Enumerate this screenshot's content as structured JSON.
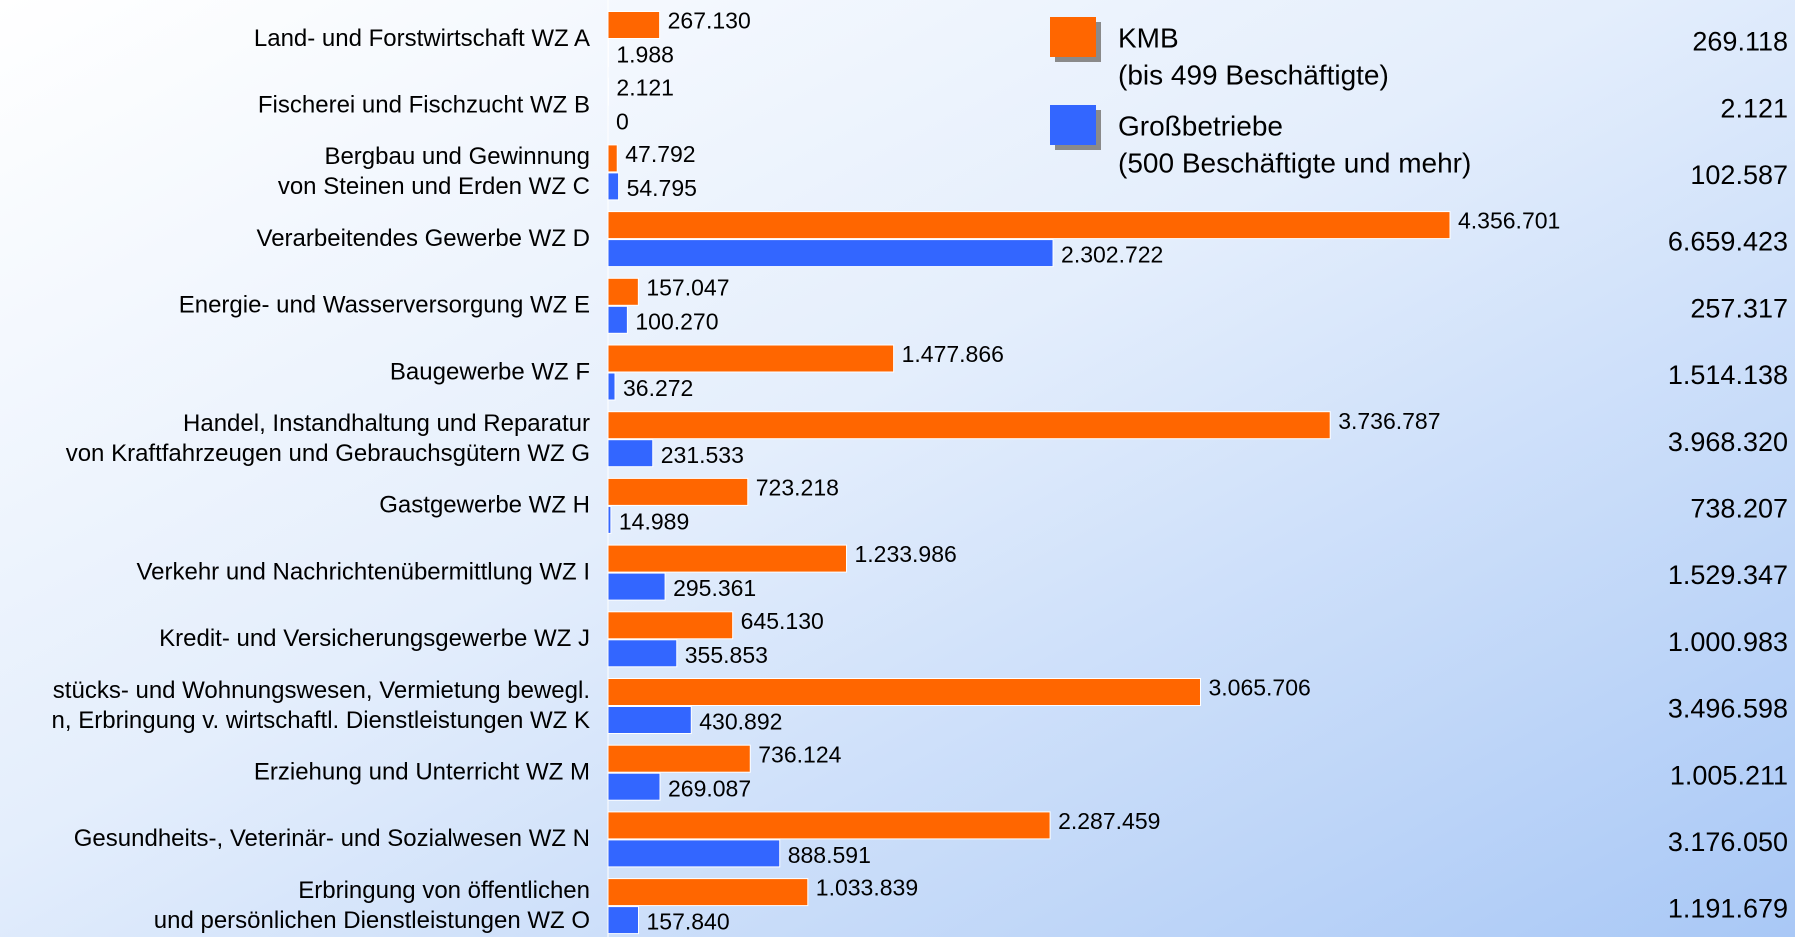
{
  "chart_data": {
    "type": "bar",
    "categories": [
      [
        "Land- und Forstwirtschaft WZ A"
      ],
      [
        "Fischerei und Fischzucht WZ B"
      ],
      [
        "Bergbau und Gewinnung",
        "von Steinen und Erden WZ C"
      ],
      [
        "Verarbeitendes Gewerbe WZ D"
      ],
      [
        "Energie- und Wasserversorgung WZ E"
      ],
      [
        "Baugewerbe WZ F"
      ],
      [
        "Handel, Instandhaltung und Reparatur",
        "von Kraftfahrzeugen und Gebrauchsgütern WZ G"
      ],
      [
        "Gastgewerbe WZ H"
      ],
      [
        "Verkehr und Nachrichtenübermittlung WZ I"
      ],
      [
        "Kredit- und Versicherungsgewerbe WZ J"
      ],
      [
        "stücks- und Wohnungswesen, Vermietung bewegl.",
        "n, Erbringung v. wirtschaftl. Dienstleistungen WZ K"
      ],
      [
        "Erziehung und Unterricht WZ M"
      ],
      [
        "Gesundheits-, Veterinär- und Sozialwesen WZ N"
      ],
      [
        "Erbringung von öffentlichen",
        "und persönlichen Dienstleistungen WZ O"
      ]
    ],
    "series": [
      {
        "name": "KMB",
        "description": "(bis 499 Beschäftigte)",
        "color": "#ff6600",
        "values": [
          267130,
          2121,
          47792,
          4356701,
          157047,
          1477866,
          3736787,
          723218,
          1233986,
          645130,
          3065706,
          736124,
          2287459,
          1033839
        ],
        "value_labels": [
          "267.130",
          "2.121",
          "47.792",
          "4.356.701",
          "157.047",
          "1.477.866",
          "3.736.787",
          "723.218",
          "1.233.986",
          "645.130",
          "3.065.706",
          "736.124",
          "2.287.459",
          "1.033.839"
        ]
      },
      {
        "name": "Großbetriebe",
        "description": "(500 Beschäftigte und mehr)",
        "color": "#3366ff",
        "values": [
          1988,
          0,
          54795,
          2302722,
          100270,
          36272,
          231533,
          14989,
          295361,
          355853,
          430892,
          269087,
          888591,
          157840
        ],
        "value_labels": [
          "1.988",
          "0",
          "54.795",
          "2.302.722",
          "100.270",
          "36.272",
          "231.533",
          "14.989",
          "295.361",
          "355.853",
          "430.892",
          "269.087",
          "888.591",
          "157.840"
        ]
      }
    ],
    "totals": {
      "values": [
        269118,
        2121,
        102587,
        6659423,
        257317,
        1514138,
        3968320,
        738207,
        1529347,
        1000983,
        3496598,
        1005211,
        3176050,
        1191679
      ],
      "value_labels": [
        "269.118",
        "2.121",
        "102.587",
        "6.659.423",
        "257.317",
        "1.514.138",
        "3.968.320",
        "738.207",
        "1.529.347",
        "1.000.983",
        "3.496.598",
        "1.005.211",
        "3.176.050",
        "1.191.679"
      ]
    }
  }
}
